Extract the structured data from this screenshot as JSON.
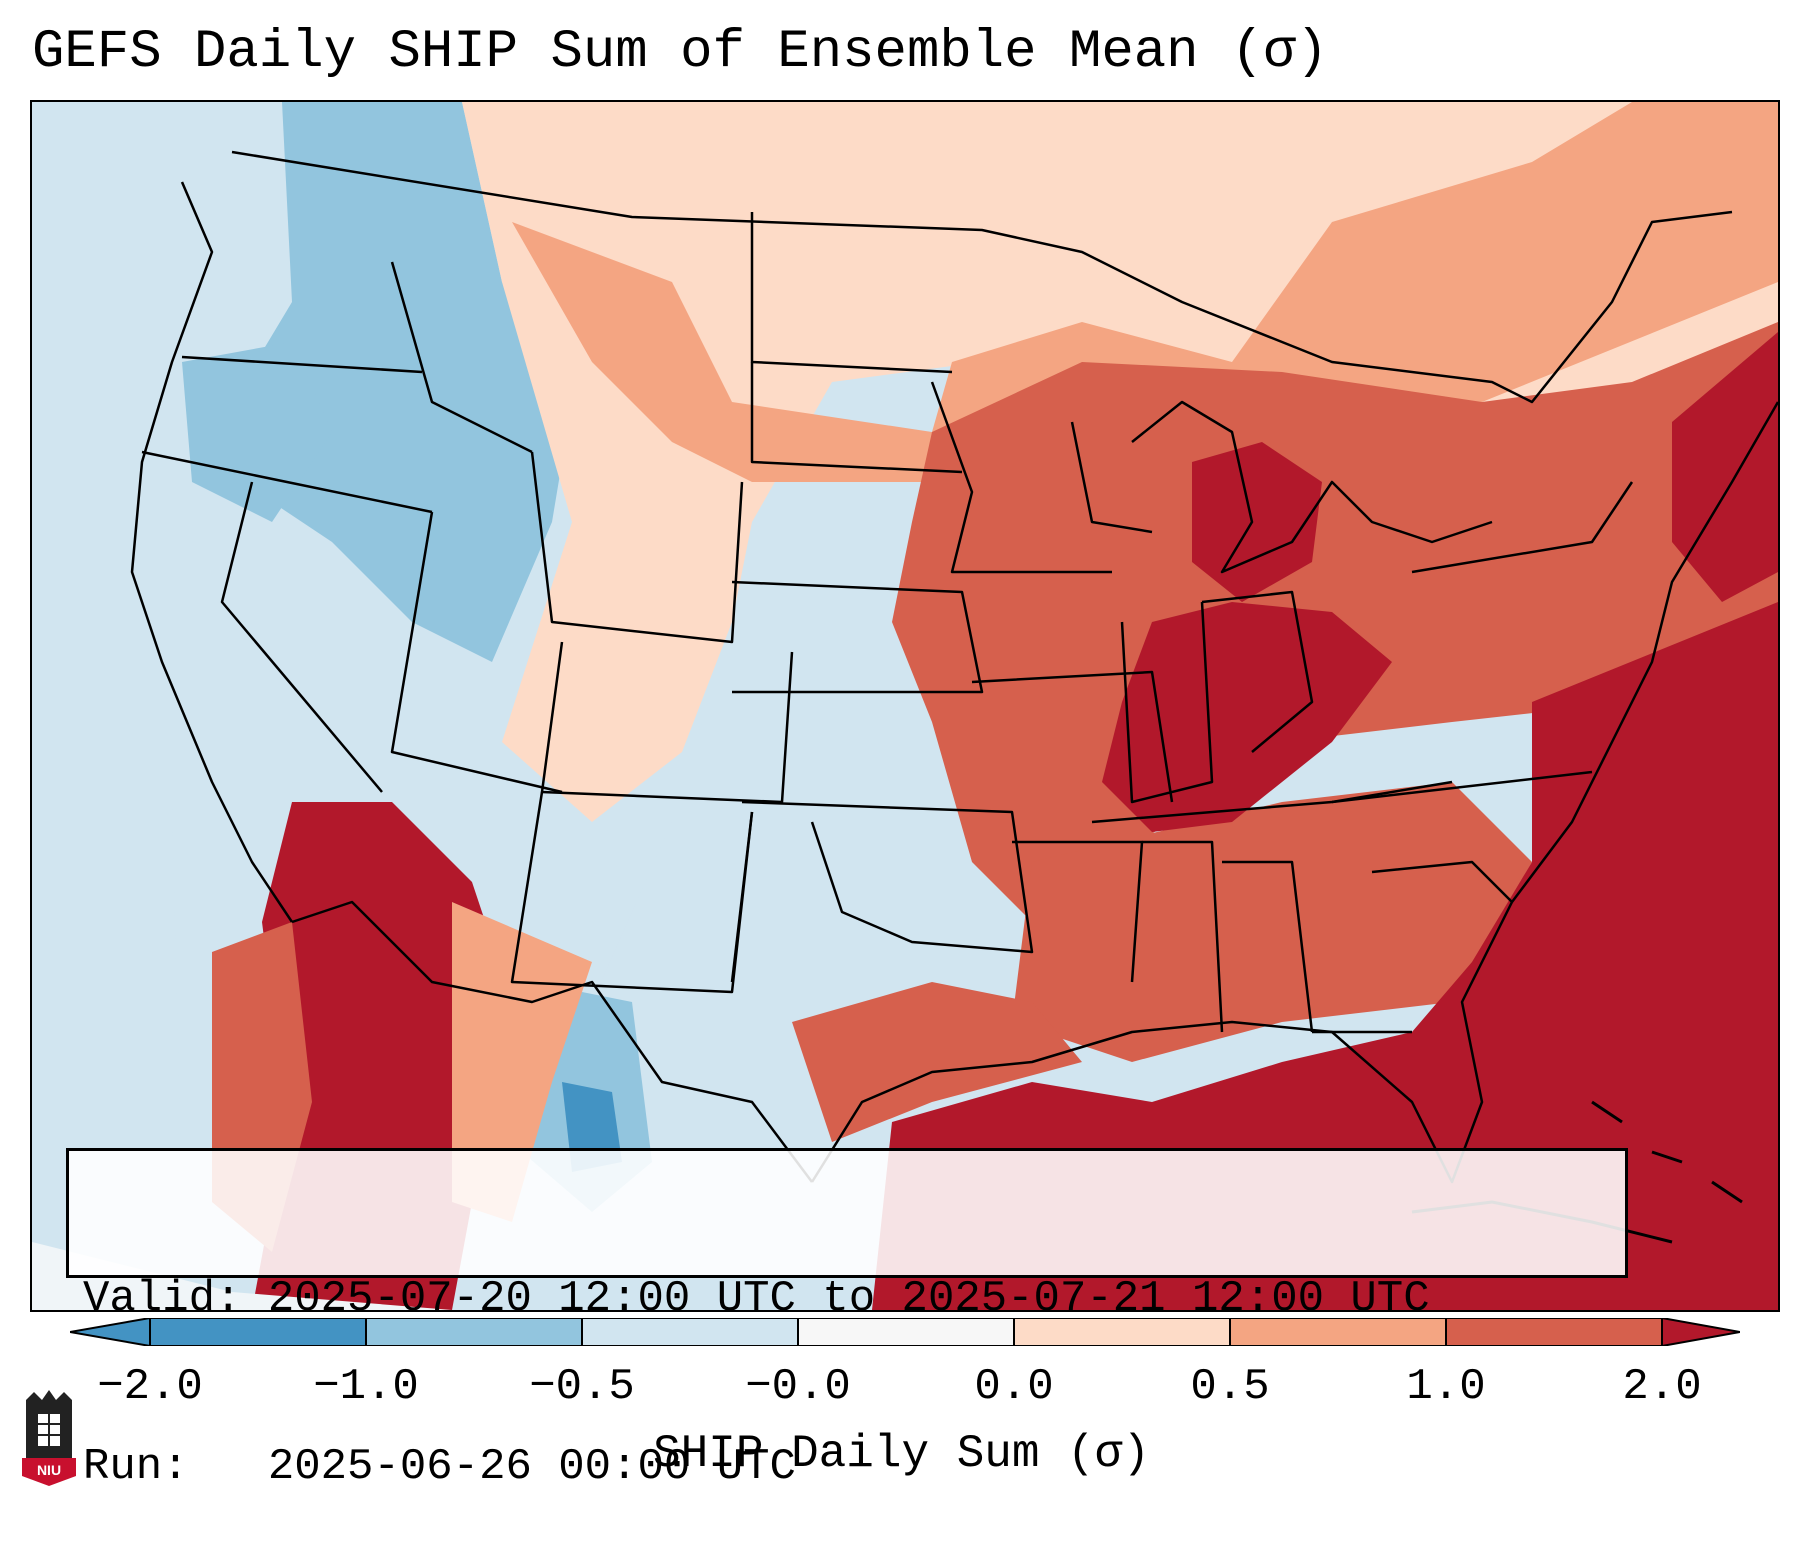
{
  "title": "GEFS Daily SHIP Sum of Ensemble Mean (σ)",
  "info": {
    "valid_line": "Valid: 2025-07-20 12:00 UTC to 2025-07-21 12:00 UTC",
    "run_line": "Run:   2025-06-26 00:00 UTC"
  },
  "colorbar": {
    "label": "SHIP Daily Sum (σ)",
    "ticks": [
      "−2.0",
      "−1.0",
      "−0.5",
      "−0.0",
      "0.0",
      "0.5",
      "1.0",
      "2.0"
    ],
    "colors": [
      "#4393c3",
      "#92c5de",
      "#d1e5f0",
      "#f7f7f7",
      "#fddbc7",
      "#f4a582",
      "#d6604d",
      "#b2182b"
    ],
    "under_color": "#2166ac",
    "over_color": "#67001f"
  },
  "map": {
    "background_color": "#d1e5f0",
    "region": "Contiguous United States",
    "fields": [
      {
        "name": "west-neutral",
        "value": -0.5
      },
      {
        "name": "rockies-low",
        "value": -1.0
      },
      {
        "name": "colorado-core-low",
        "value": -2.0
      },
      {
        "name": "plains-slight-high",
        "value": 0.5
      },
      {
        "name": "midwest-high",
        "value": 1.0
      },
      {
        "name": "ohio-valley-very-high",
        "value": 2.0
      },
      {
        "name": "gulf-atlantic-very-high",
        "value": 2.0
      },
      {
        "name": "southwest-mexico-very-high",
        "value": 2.0
      }
    ]
  },
  "logo": {
    "text": "NIU"
  }
}
